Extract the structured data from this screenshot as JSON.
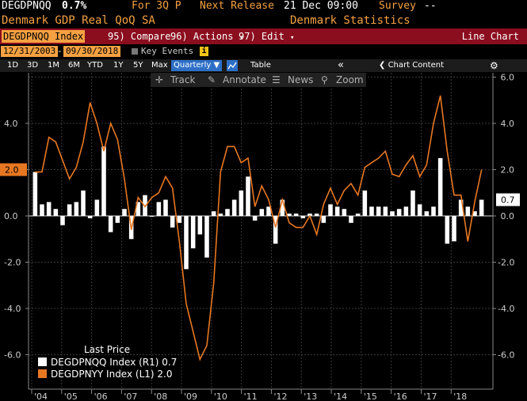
{
  "header": {
    "ticker": "DEGDPNQQ",
    "value": "0.7%",
    "period": "For 3Q P",
    "next_release_label": "Next Release",
    "next_release": "21 Dec 09:00",
    "survey_label": "Survey",
    "survey_value": "--",
    "title": "Denmark GDP Real QoQ SA",
    "source": "Denmark Statistics"
  },
  "toolbar": {
    "security": "DEGDPNQQ Index",
    "compare": "95) Compare",
    "actions": "96) Actions",
    "edit": "97) Edit",
    "view": "Line Chart"
  },
  "range": {
    "start": "12/31/2003",
    "end": "09/30/2018",
    "key_events": "Key Events"
  },
  "periods": {
    "items": [
      "1D",
      "3D",
      "1M",
      "6M",
      "YTD",
      "1Y",
      "5Y",
      "Max"
    ],
    "frequency": "Quarterly",
    "table": "Table",
    "chart_content": "Chart Content"
  },
  "chart_tools": {
    "track": "Track",
    "annotate": "Annotate",
    "news": "News",
    "zoom": "Zoom"
  },
  "legend": {
    "title": "Last Price",
    "items": [
      {
        "label": "DEGDPNQQ Index  (R1) 0.7",
        "color": "#ffffff"
      },
      {
        "label": "DEGDPNYY Index  (L1) 2.0",
        "color": "#e87722"
      }
    ]
  },
  "colors": {
    "bar": "#ffffff",
    "line": "#e87722",
    "header_bar": "#8b0e1e",
    "accent": "#f5a142"
  },
  "chart_data": {
    "type": "bar",
    "x_tick_labels": [
      "'04",
      "'05",
      "'06",
      "'07",
      "'08",
      "'09",
      "'10",
      "'11",
      "'12",
      "'13",
      "'14",
      "'15",
      "'16",
      "'17",
      "'18"
    ],
    "left_axis": {
      "ticks": [
        "4.0",
        "2.0",
        "0.0",
        "-2.0",
        "-4.0",
        "-6.0"
      ],
      "ylim": [
        -6.5,
        6.0
      ],
      "badge": "2.0"
    },
    "right_axis": {
      "ticks": [
        "6.0",
        "4.0",
        "2.0",
        "0.0",
        "-2.0",
        "-4.0",
        "-6.0"
      ],
      "ylim": [
        -6.5,
        6.0
      ],
      "badge": "0.7"
    },
    "series": [
      {
        "name": "DEGDPNQQ Index",
        "type": "bar",
        "axis": "right",
        "values": [
          1.9,
          0.5,
          0.6,
          0.3,
          -0.4,
          0.5,
          0.6,
          1.1,
          -0.1,
          0.7,
          3.0,
          -0.7,
          -0.3,
          0.3,
          -1.0,
          0.6,
          0.9,
          0.0,
          0.6,
          0.7,
          -0.5,
          -0.3,
          -2.3,
          -1.4,
          -0.8,
          -1.8,
          0.2,
          0.1,
          0.3,
          0.7,
          1.1,
          1.7,
          -0.2,
          0.3,
          0.4,
          -1.2,
          0.7,
          0.1,
          0.1,
          -0.1,
          0.1,
          0.1,
          -0.3,
          0.5,
          0.4,
          0.3,
          -0.3,
          0.1,
          1.1,
          0.4,
          0.4,
          0.4,
          0.2,
          0.3,
          0.4,
          1.1,
          0.5,
          0.2,
          0.4,
          2.5,
          -1.2,
          -1.1,
          0.7,
          0.4,
          0.2,
          0.7
        ]
      },
      {
        "name": "DEGDPNYY Index",
        "type": "line",
        "axis": "left",
        "values": [
          1.9,
          1.9,
          3.4,
          3.2,
          2.4,
          1.6,
          2.1,
          3.2,
          4.9,
          4.0,
          2.8,
          4.0,
          3.3,
          1.6,
          -0.6,
          0.8,
          0.4,
          0.8,
          1.0,
          1.7,
          1.2,
          -1.1,
          -3.8,
          -5.0,
          -6.2,
          -5.6,
          -2.9,
          1.9,
          3.0,
          3.0,
          2.3,
          2.5,
          0.4,
          1.3,
          0.7,
          -0.5,
          0.7,
          -0.3,
          -0.5,
          -0.5,
          0.0,
          -0.8,
          0.5,
          1.2,
          0.5,
          1.1,
          1.4,
          0.9,
          2.1,
          2.3,
          2.5,
          2.8,
          1.8,
          1.7,
          2.2,
          2.6,
          1.7,
          2.2,
          4.0,
          5.2,
          2.8,
          0.9,
          0.9,
          -1.1,
          0.6,
          2.0
        ]
      }
    ]
  }
}
